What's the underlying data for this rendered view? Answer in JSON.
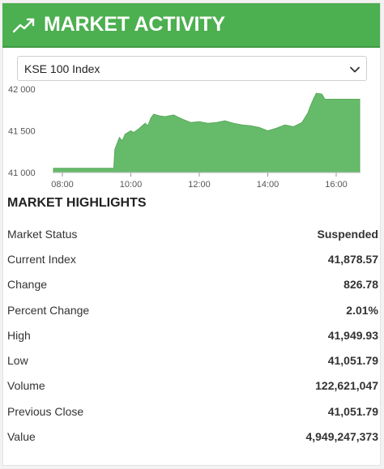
{
  "header": {
    "title": "MARKET ACTIVITY",
    "icon": "trending-up-icon",
    "color": "#4caf50"
  },
  "index_select": {
    "selected": "KSE 100 Index"
  },
  "chart_data": {
    "type": "area",
    "color": "#66bb6a",
    "y_ticks": [
      "42 000",
      "41 500",
      "41 000"
    ],
    "x_ticks": [
      "08:00",
      "10:00",
      "12:00",
      "14:00",
      "16:00"
    ],
    "ylim": [
      41000,
      42000
    ],
    "xlim": [
      "08:00",
      "16:45"
    ],
    "points": [
      [
        "08:00",
        41051.79
      ],
      [
        "09:30",
        41051.79
      ],
      [
        "09:32",
        41280
      ],
      [
        "09:40",
        41420
      ],
      [
        "09:45",
        41380
      ],
      [
        "09:50",
        41460
      ],
      [
        "10:00",
        41500
      ],
      [
        "10:05",
        41480
      ],
      [
        "10:15",
        41530
      ],
      [
        "10:25",
        41590
      ],
      [
        "10:30",
        41560
      ],
      [
        "10:35",
        41650
      ],
      [
        "10:40",
        41700
      ],
      [
        "10:50",
        41680
      ],
      [
        "11:00",
        41670
      ],
      [
        "11:15",
        41690
      ],
      [
        "11:30",
        41640
      ],
      [
        "11:45",
        41600
      ],
      [
        "12:00",
        41610
      ],
      [
        "12:15",
        41590
      ],
      [
        "12:30",
        41600
      ],
      [
        "12:45",
        41620
      ],
      [
        "13:00",
        41590
      ],
      [
        "13:15",
        41570
      ],
      [
        "13:30",
        41560
      ],
      [
        "13:45",
        41540
      ],
      [
        "14:00",
        41500
      ],
      [
        "14:15",
        41530
      ],
      [
        "14:30",
        41570
      ],
      [
        "14:45",
        41550
      ],
      [
        "15:00",
        41600
      ],
      [
        "15:10",
        41710
      ],
      [
        "15:15",
        41800
      ],
      [
        "15:20",
        41880
      ],
      [
        "15:25",
        41949.93
      ],
      [
        "15:35",
        41940
      ],
      [
        "15:40",
        41878.57
      ],
      [
        "16:40",
        41878.57
      ]
    ]
  },
  "highlights": {
    "title": "MARKET HIGHLIGHTS",
    "rows": [
      {
        "label": "Market Status",
        "value": "Suspended"
      },
      {
        "label": "Current Index",
        "value": "41,878.57"
      },
      {
        "label": "Change",
        "value": "826.78"
      },
      {
        "label": "Percent Change",
        "value": "2.01%"
      },
      {
        "label": "High",
        "value": "41,949.93"
      },
      {
        "label": "Low",
        "value": "41,051.79"
      },
      {
        "label": "Volume",
        "value": "122,621,047"
      },
      {
        "label": "Previous Close",
        "value": "41,051.79"
      },
      {
        "label": "Value",
        "value": "4,949,247,373"
      }
    ]
  }
}
